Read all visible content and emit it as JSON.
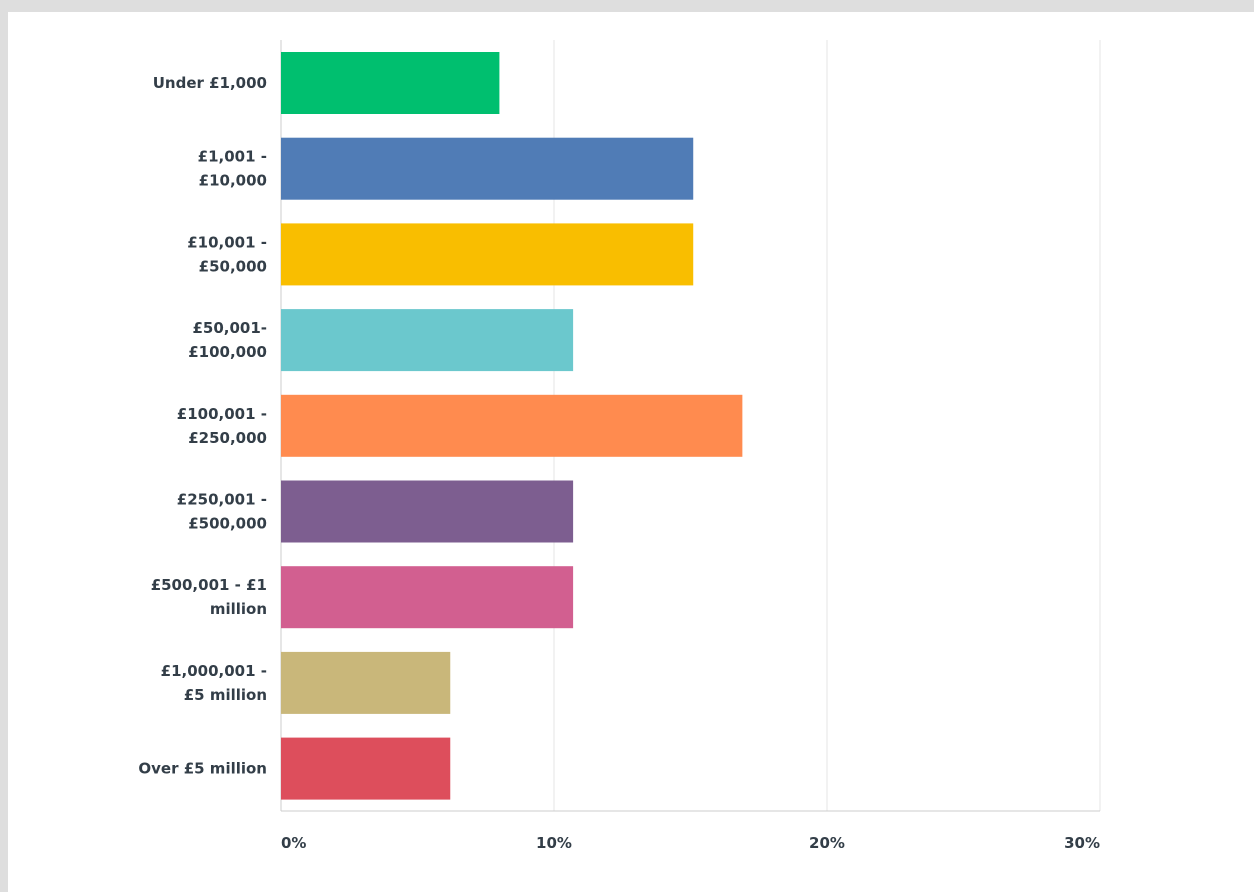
{
  "chart_data": {
    "type": "bar",
    "orientation": "horizontal",
    "categories": [
      [
        "Under £1,000"
      ],
      [
        "£1,001 -",
        "£10,000"
      ],
      [
        "£10,001 -",
        "£50,000"
      ],
      [
        "£50,001-",
        "£100,000"
      ],
      [
        "£100,001 -",
        "£250,000"
      ],
      [
        "£250,001 -",
        "£500,000"
      ],
      [
        "£500,001 - £1",
        "million"
      ],
      [
        "£1,000,001 -",
        "£5 million"
      ],
      [
        "Over £5 million"
      ]
    ],
    "values": [
      8.0,
      15.1,
      15.1,
      10.7,
      16.9,
      10.7,
      10.7,
      6.2,
      6.2
    ],
    "colors": [
      "#00bf6f",
      "#507cb6",
      "#f9be00",
      "#6bc8cd",
      "#ff8b4f",
      "#7d5e90",
      "#d25f90",
      "#c9b77a",
      "#dd4e5c"
    ],
    "xlim": [
      0,
      30
    ],
    "xticks": [
      0,
      10,
      20,
      30
    ],
    "xtick_labels": [
      "0%",
      "10%",
      "20%",
      "30%"
    ],
    "grid": true,
    "title": "",
    "xlabel": "",
    "ylabel": ""
  }
}
